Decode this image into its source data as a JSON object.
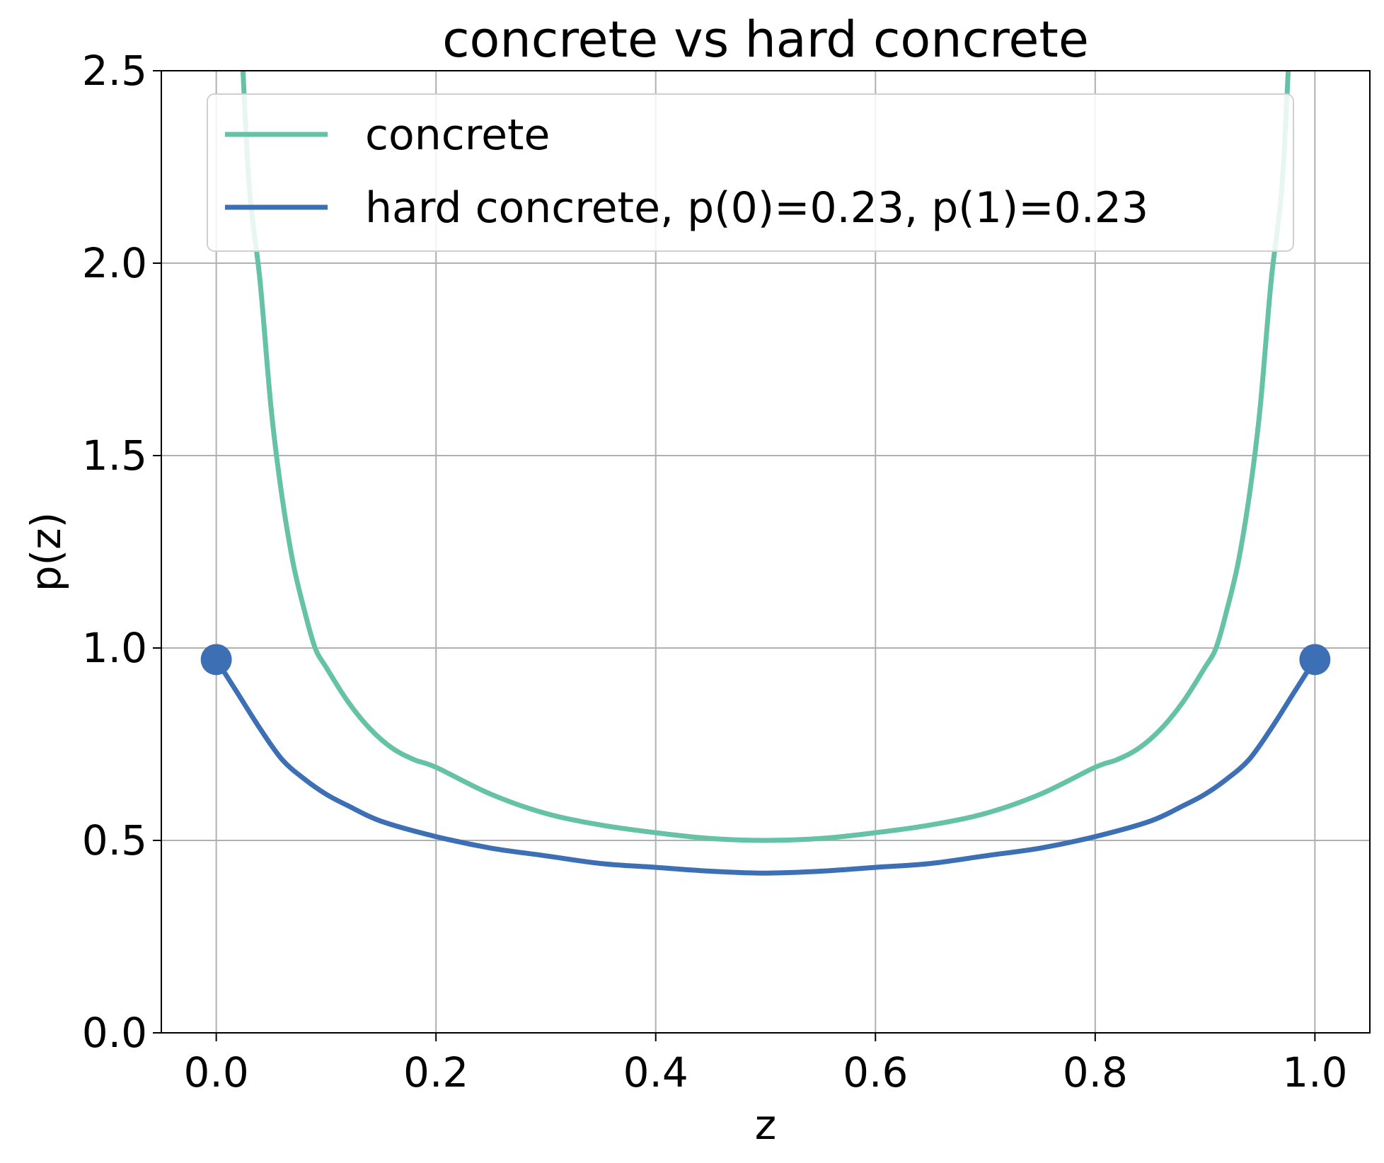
{
  "chart_data": {
    "type": "line",
    "title": "concrete vs hard concrete",
    "xlabel": "z",
    "ylabel": "p(z)",
    "xlim": [
      -0.05,
      1.05
    ],
    "ylim": [
      0,
      2.5
    ],
    "xticks": [
      "0.0",
      "0.2",
      "0.4",
      "0.6",
      "0.8",
      "1.0"
    ],
    "yticks": [
      "0.0",
      "0.5",
      "1.0",
      "1.5",
      "2.0",
      "2.5"
    ],
    "grid": true,
    "legend_position": "top",
    "series": [
      {
        "name": "concrete",
        "color": "#66c2a5",
        "x": [
          0.023,
          0.03,
          0.04,
          0.05,
          0.06,
          0.07,
          0.08,
          0.09,
          0.1,
          0.12,
          0.14,
          0.16,
          0.18,
          0.2,
          0.25,
          0.3,
          0.35,
          0.4,
          0.45,
          0.5,
          0.55,
          0.6,
          0.65,
          0.7,
          0.75,
          0.8,
          0.82,
          0.84,
          0.86,
          0.88,
          0.9,
          0.91,
          0.92,
          0.93,
          0.94,
          0.95,
          0.96,
          0.97,
          0.977
        ],
        "y": [
          2.58,
          2.2,
          1.95,
          1.62,
          1.39,
          1.22,
          1.1,
          1.0,
          0.95,
          0.86,
          0.79,
          0.74,
          0.71,
          0.69,
          0.62,
          0.57,
          0.54,
          0.52,
          0.505,
          0.5,
          0.505,
          0.52,
          0.54,
          0.57,
          0.62,
          0.69,
          0.71,
          0.74,
          0.79,
          0.86,
          0.95,
          1.0,
          1.1,
          1.22,
          1.39,
          1.62,
          1.95,
          2.2,
          2.58
        ]
      },
      {
        "name": "hard concrete, p(0)=0.23, p(1)=0.23",
        "color": "#3d6fb5",
        "x": [
          0.0,
          0.02,
          0.04,
          0.06,
          0.08,
          0.1,
          0.12,
          0.15,
          0.2,
          0.25,
          0.3,
          0.35,
          0.4,
          0.45,
          0.5,
          0.55,
          0.6,
          0.65,
          0.7,
          0.75,
          0.8,
          0.85,
          0.88,
          0.9,
          0.92,
          0.94,
          0.96,
          0.98,
          1.0
        ],
        "y": [
          0.97,
          0.88,
          0.79,
          0.71,
          0.66,
          0.62,
          0.59,
          0.55,
          0.51,
          0.48,
          0.46,
          0.44,
          0.43,
          0.42,
          0.415,
          0.42,
          0.43,
          0.44,
          0.46,
          0.48,
          0.51,
          0.55,
          0.59,
          0.62,
          0.66,
          0.71,
          0.79,
          0.88,
          0.97
        ]
      }
    ],
    "markers": [
      {
        "series": "hard concrete, p(0)=0.23, p(1)=0.23",
        "x": 0.0,
        "y": 0.97
      },
      {
        "series": "hard concrete, p(0)=0.23, p(1)=0.23",
        "x": 1.0,
        "y": 0.97
      }
    ]
  }
}
